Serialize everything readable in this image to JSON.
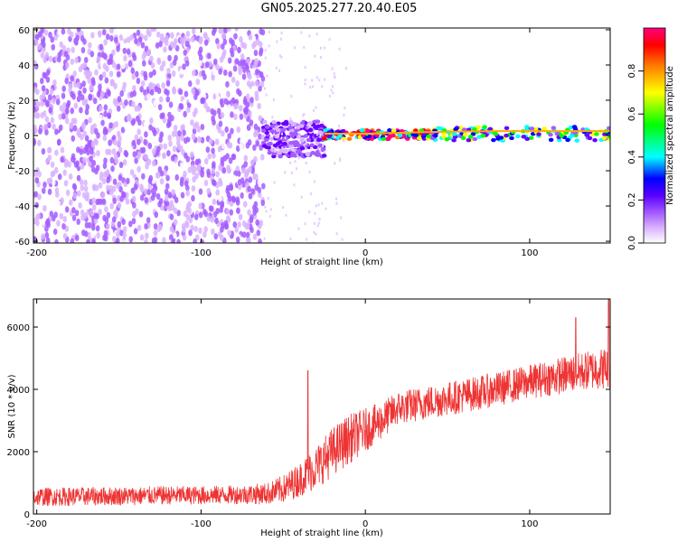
{
  "title": "GN05.2025.277.20.40.E05",
  "chart_data": [
    {
      "type": "heatmap",
      "xlabel": "Height of straight line (km)",
      "ylabel": "Frequency (Hz)",
      "xlim": [
        -202,
        149
      ],
      "ylim": [
        -61,
        61
      ],
      "xticks": [
        -200,
        -100,
        0,
        100
      ],
      "yticks": [
        -60,
        -40,
        -20,
        0,
        20,
        40,
        60
      ],
      "xtick_labels": [
        "-200",
        "-100",
        "0",
        "100"
      ],
      "ytick_labels": [
        "-60",
        "-40",
        "-20",
        "0",
        "20",
        "40",
        "60"
      ],
      "colorbar": {
        "label": "Normalized spectral amplitude",
        "range": [
          0,
          1
        ],
        "ticks": [
          0.0,
          0.2,
          0.4,
          0.6,
          0.8
        ],
        "tick_labels": [
          "0.0",
          "0.2",
          "0.4",
          "0.6",
          "0.8"
        ],
        "colors": [
          "#ffffff",
          "#d9b3ff",
          "#a45cff",
          "#6a00ff",
          "#0000ff",
          "#00ffff",
          "#00ff00",
          "#ffff00",
          "#ff8000",
          "#ff0000",
          "#ff0080"
        ]
      },
      "regions": [
        {
          "x_range": [
            -202,
            -62
          ],
          "freq_range": [
            -61,
            61
          ],
          "amplitude": 0.05,
          "description": "diffuse noise"
        },
        {
          "x_range": [
            -62,
            -25
          ],
          "freq_range": [
            -12,
            8
          ],
          "amplitude": 0.2
        },
        {
          "x_range": [
            -25,
            40
          ],
          "freq_range": [
            -2,
            3
          ],
          "amplitude": 0.75
        },
        {
          "x_range": [
            40,
            149
          ],
          "freq_range": [
            -3,
            5
          ],
          "amplitude": 0.45
        }
      ]
    },
    {
      "type": "line",
      "xlabel": "Height of straight line (km)",
      "ylabel": "SNR (10 * v/v)",
      "xlim": [
        -202,
        149
      ],
      "ylim": [
        0,
        6900
      ],
      "xticks": [
        -200,
        -100,
        0,
        100
      ],
      "yticks": [
        0,
        2000,
        4000,
        6000
      ],
      "xtick_labels": [
        "-200",
        "-100",
        "0",
        "100"
      ],
      "ytick_labels": [
        "0",
        "2000",
        "4000",
        "6000"
      ],
      "color": "#ee3333",
      "series": [
        {
          "name": "SNR",
          "x": [
            -202,
            -180,
            -160,
            -140,
            -120,
            -100,
            -80,
            -60,
            -50,
            -40,
            -30,
            -20,
            -10,
            0,
            10,
            20,
            30,
            40,
            60,
            80,
            100,
            120,
            140,
            149
          ],
          "values": [
            550,
            560,
            570,
            580,
            600,
            600,
            620,
            650,
            800,
            1100,
            1500,
            2000,
            2400,
            2700,
            3000,
            3400,
            3500,
            3600,
            3800,
            4000,
            4250,
            4450,
            4650,
            4700
          ],
          "spread": [
            300,
            300,
            300,
            300,
            300,
            300,
            300,
            350,
            450,
            550,
            700,
            800,
            800,
            700,
            600,
            550,
            550,
            550,
            550,
            550,
            550,
            600,
            650,
            700
          ],
          "peaks": [
            {
              "x": -35,
              "y": 4600
            },
            {
              "x": 128,
              "y": 6300
            },
            {
              "x": 148,
              "y": 6900
            }
          ]
        }
      ]
    }
  ]
}
